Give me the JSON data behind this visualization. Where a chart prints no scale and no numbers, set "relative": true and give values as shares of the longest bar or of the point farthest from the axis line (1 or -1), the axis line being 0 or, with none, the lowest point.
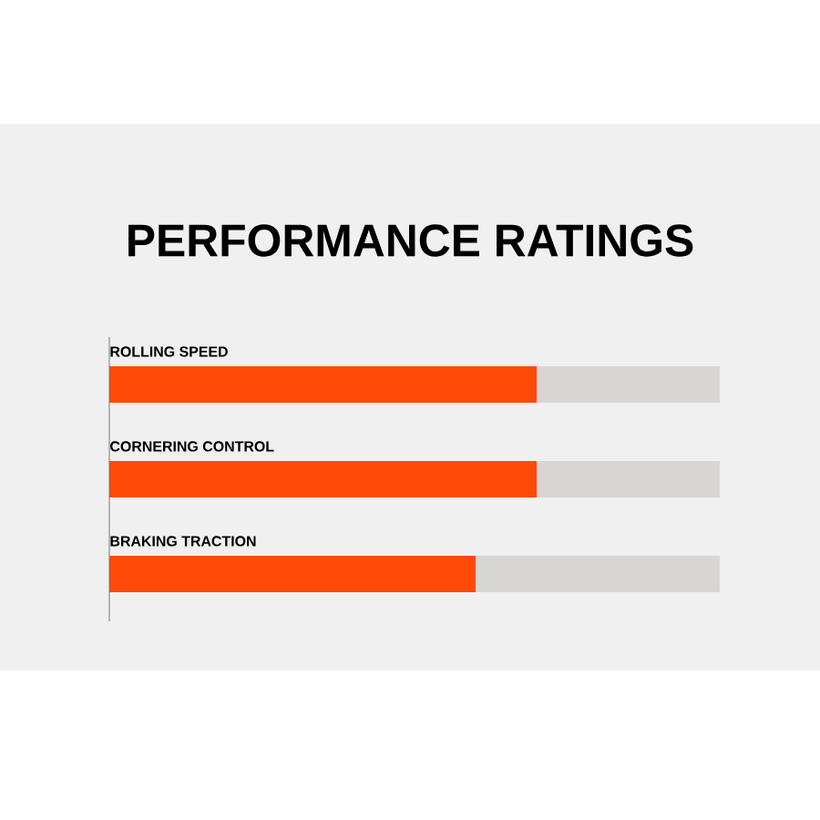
{
  "chart_data": {
    "type": "bar",
    "title": "PERFORMANCE RATINGS",
    "orientation": "horizontal",
    "stacked": true,
    "relative": true,
    "categories": [
      "ROLLING SPEED",
      "CORNERING CONTROL",
      "BRAKING TRACTION"
    ],
    "series": [
      {
        "color": "#ff4a0a",
        "values": [
          0.7,
          0.7,
          0.6
        ]
      },
      {
        "color": "#d8d6d4",
        "values": [
          0.3,
          0.3,
          0.4
        ]
      }
    ]
  }
}
